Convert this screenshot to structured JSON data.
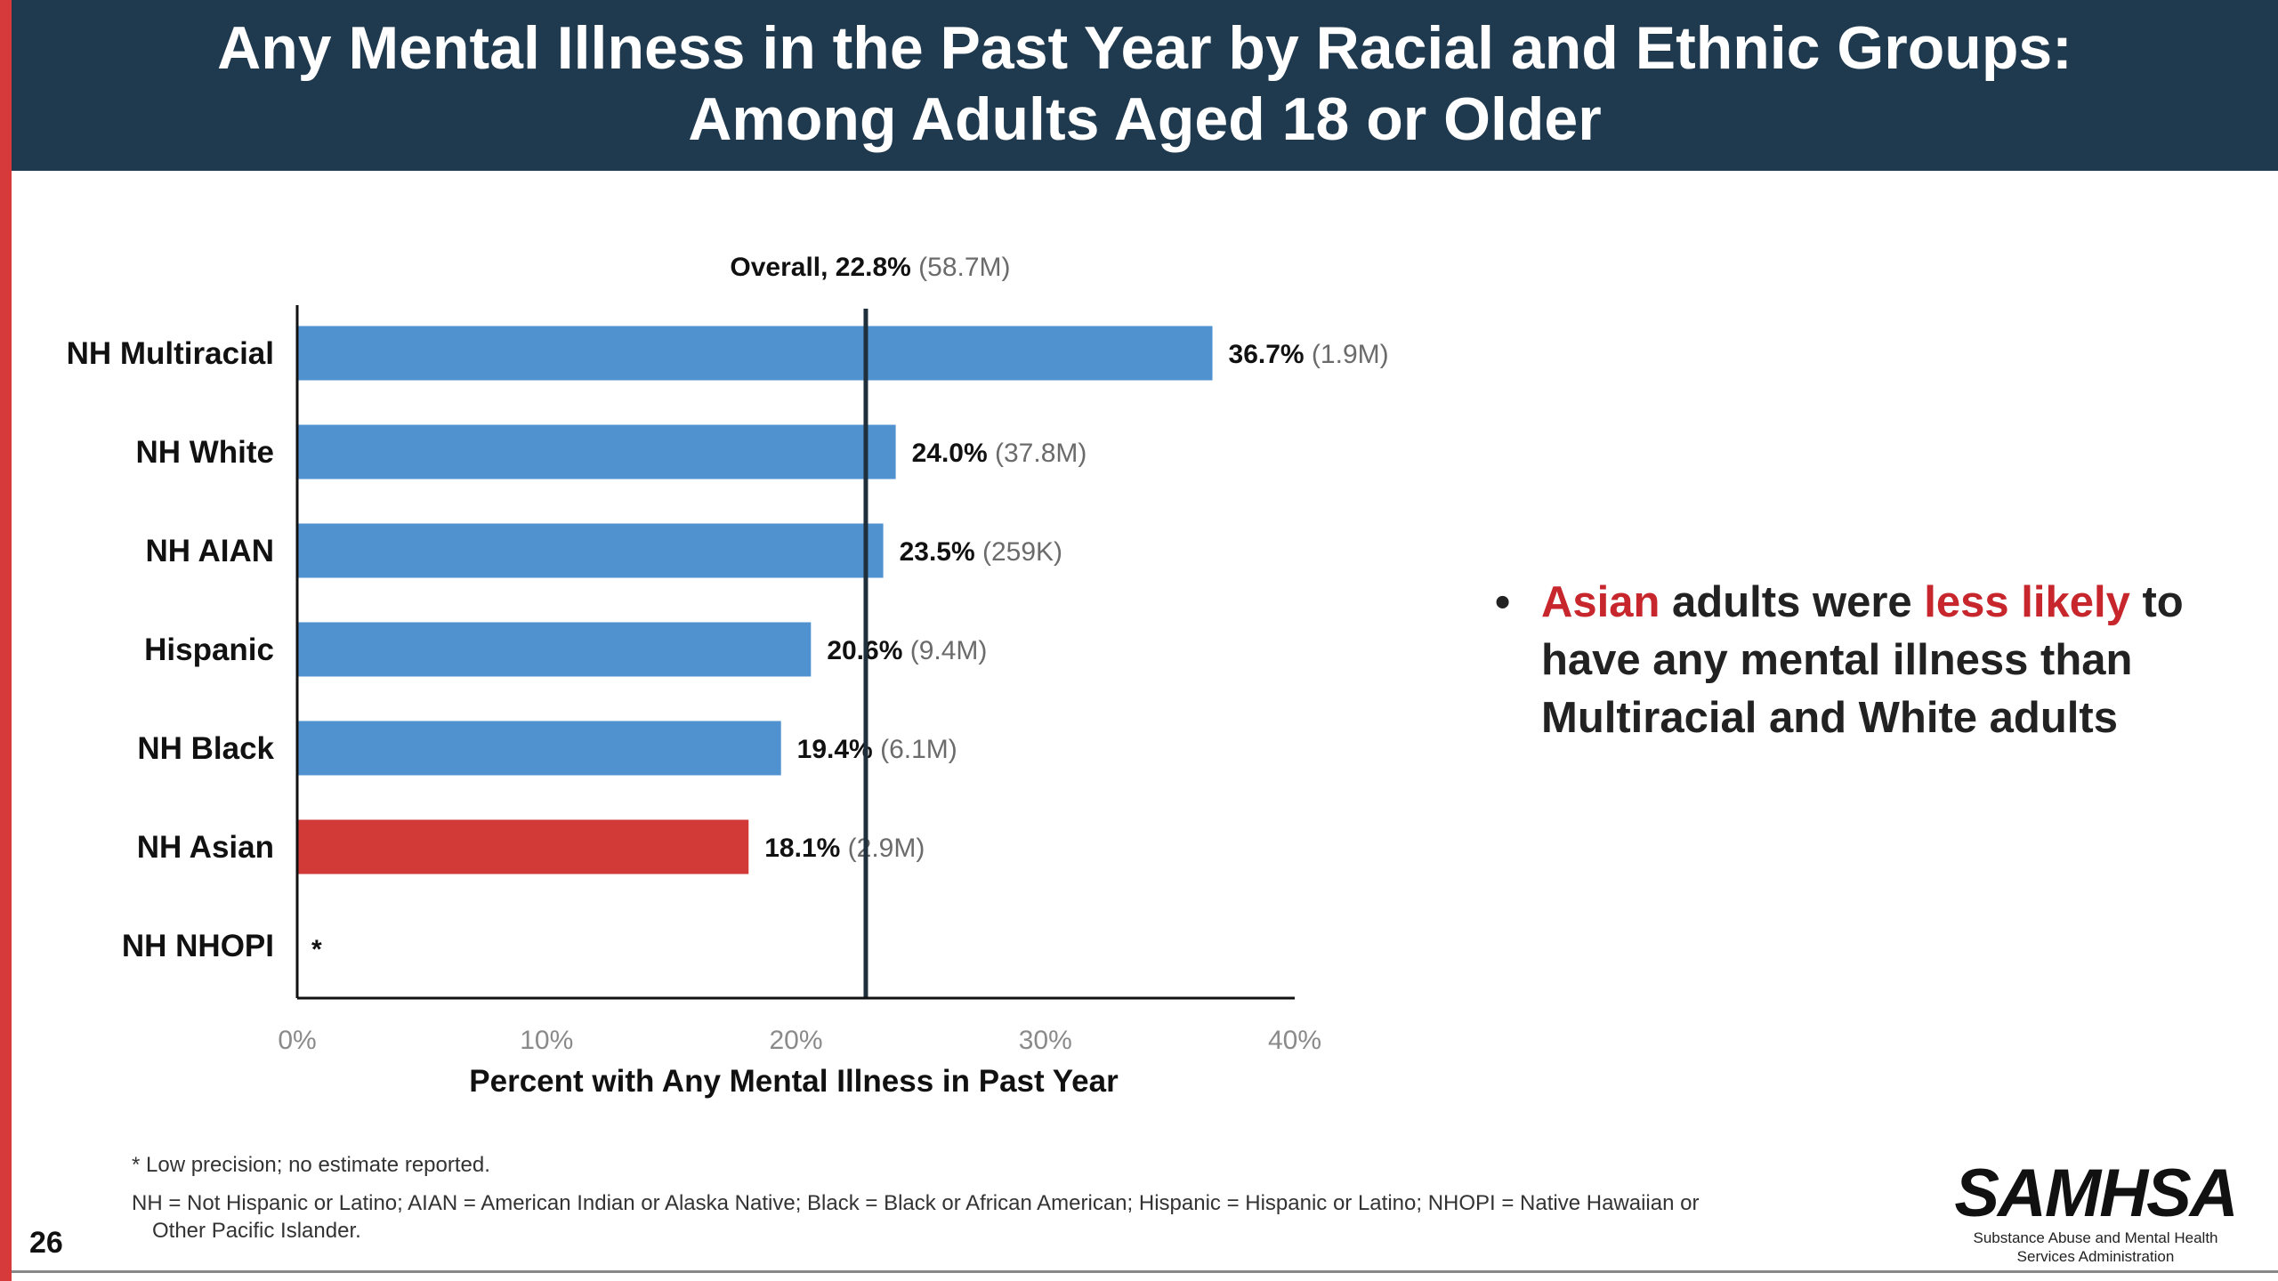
{
  "page": {
    "title_line1": "Any Mental Illness in the Past Year by Racial and Ethnic Groups:",
    "title_line2": "Among Adults Aged 18 or Older",
    "page_number": "26",
    "bullet": {
      "part1": "Asian",
      "part2": " adults were ",
      "part3": "less likely",
      "part4": " to have any mental illness than Multiracial and White adults"
    },
    "footnote1": "* Low precision; no estimate reported.",
    "footnote2_line1": "NH = Not Hispanic or Latino; AIAN = American Indian or Alaska Native; Black = Black or African American; Hispanic = Hispanic or Latino; NHOPI = Native Hawaiian or",
    "footnote2_line2": "Other Pacific Islander.",
    "logo_word": "SAMHSA",
    "logo_sub_line1": "Substance Abuse and Mental Health",
    "logo_sub_line2": "Services Administration",
    "colors": {
      "title_bg": "#1f3a4f",
      "accent_red": "#d63a3a",
      "bar_blue": "#4f92cf",
      "bar_highlight": "#d13a36",
      "highlight_text": "#c6262c"
    }
  },
  "chart_data": {
    "type": "bar",
    "orientation": "horizontal",
    "categories": [
      "NH Multiracial",
      "NH White",
      "NH AIAN",
      "Hispanic",
      "NH Black",
      "NH Asian",
      "NH NHOPI"
    ],
    "values": [
      36.7,
      24.0,
      23.5,
      20.6,
      19.4,
      18.1,
      null
    ],
    "value_labels": [
      "36.7%",
      "24.0%",
      "23.5%",
      "20.6%",
      "19.4%",
      "18.1%",
      "*"
    ],
    "count_labels": [
      "(1.9M)",
      "(37.8M)",
      "(259K)",
      "(9.4M)",
      "(6.1M)",
      "(2.9M)",
      ""
    ],
    "highlight_index": 5,
    "reference_line": {
      "value": 22.8,
      "label_bold": "Overall, 22.8%",
      "label_light": "(58.7M)"
    },
    "xlabel": "Percent with Any Mental Illness in Past Year",
    "ylabel": "",
    "xlim": [
      0,
      40
    ],
    "x_ticks": [
      0,
      10,
      20,
      30,
      40
    ],
    "x_tick_labels": [
      "0%",
      "10%",
      "20%",
      "30%",
      "40%"
    ],
    "grid": false
  }
}
